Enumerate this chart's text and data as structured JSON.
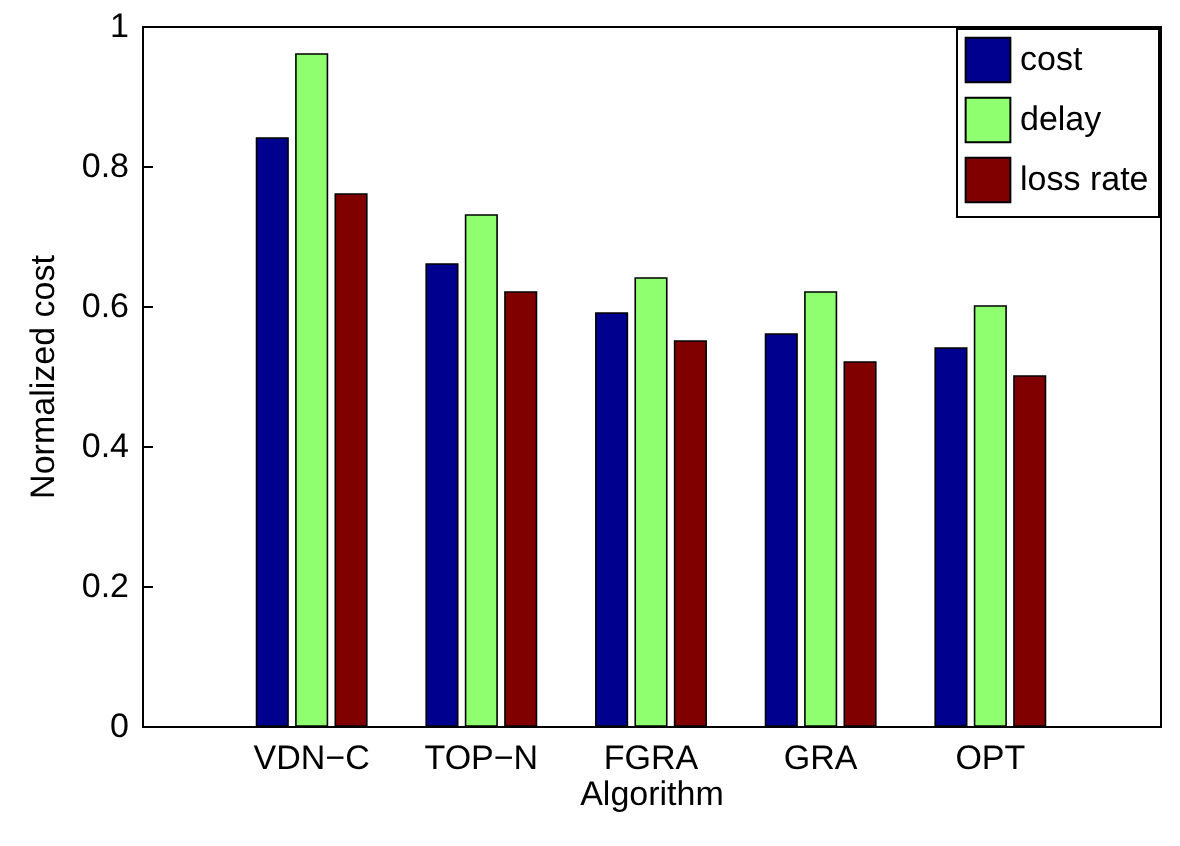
{
  "chart_data": {
    "type": "bar",
    "xlabel": "Algorithm",
    "ylabel": "Normalized cost",
    "categories": [
      "VDN−C",
      "TOP−N",
      "FGRA",
      "GRA",
      "OPT"
    ],
    "series": [
      {
        "name": "cost",
        "color": "#00008f",
        "values": [
          0.84,
          0.66,
          0.59,
          0.56,
          0.54
        ]
      },
      {
        "name": "delay",
        "color": "#8fff6f",
        "values": [
          0.96,
          0.73,
          0.64,
          0.62,
          0.6
        ]
      },
      {
        "name": "loss rate",
        "color": "#800000",
        "values": [
          0.76,
          0.62,
          0.55,
          0.52,
          0.5
        ]
      }
    ],
    "ylim": [
      0,
      1
    ],
    "yticks": [
      0,
      0.2,
      0.4,
      0.6,
      0.8,
      1
    ],
    "grid": false,
    "legend": "top right"
  }
}
